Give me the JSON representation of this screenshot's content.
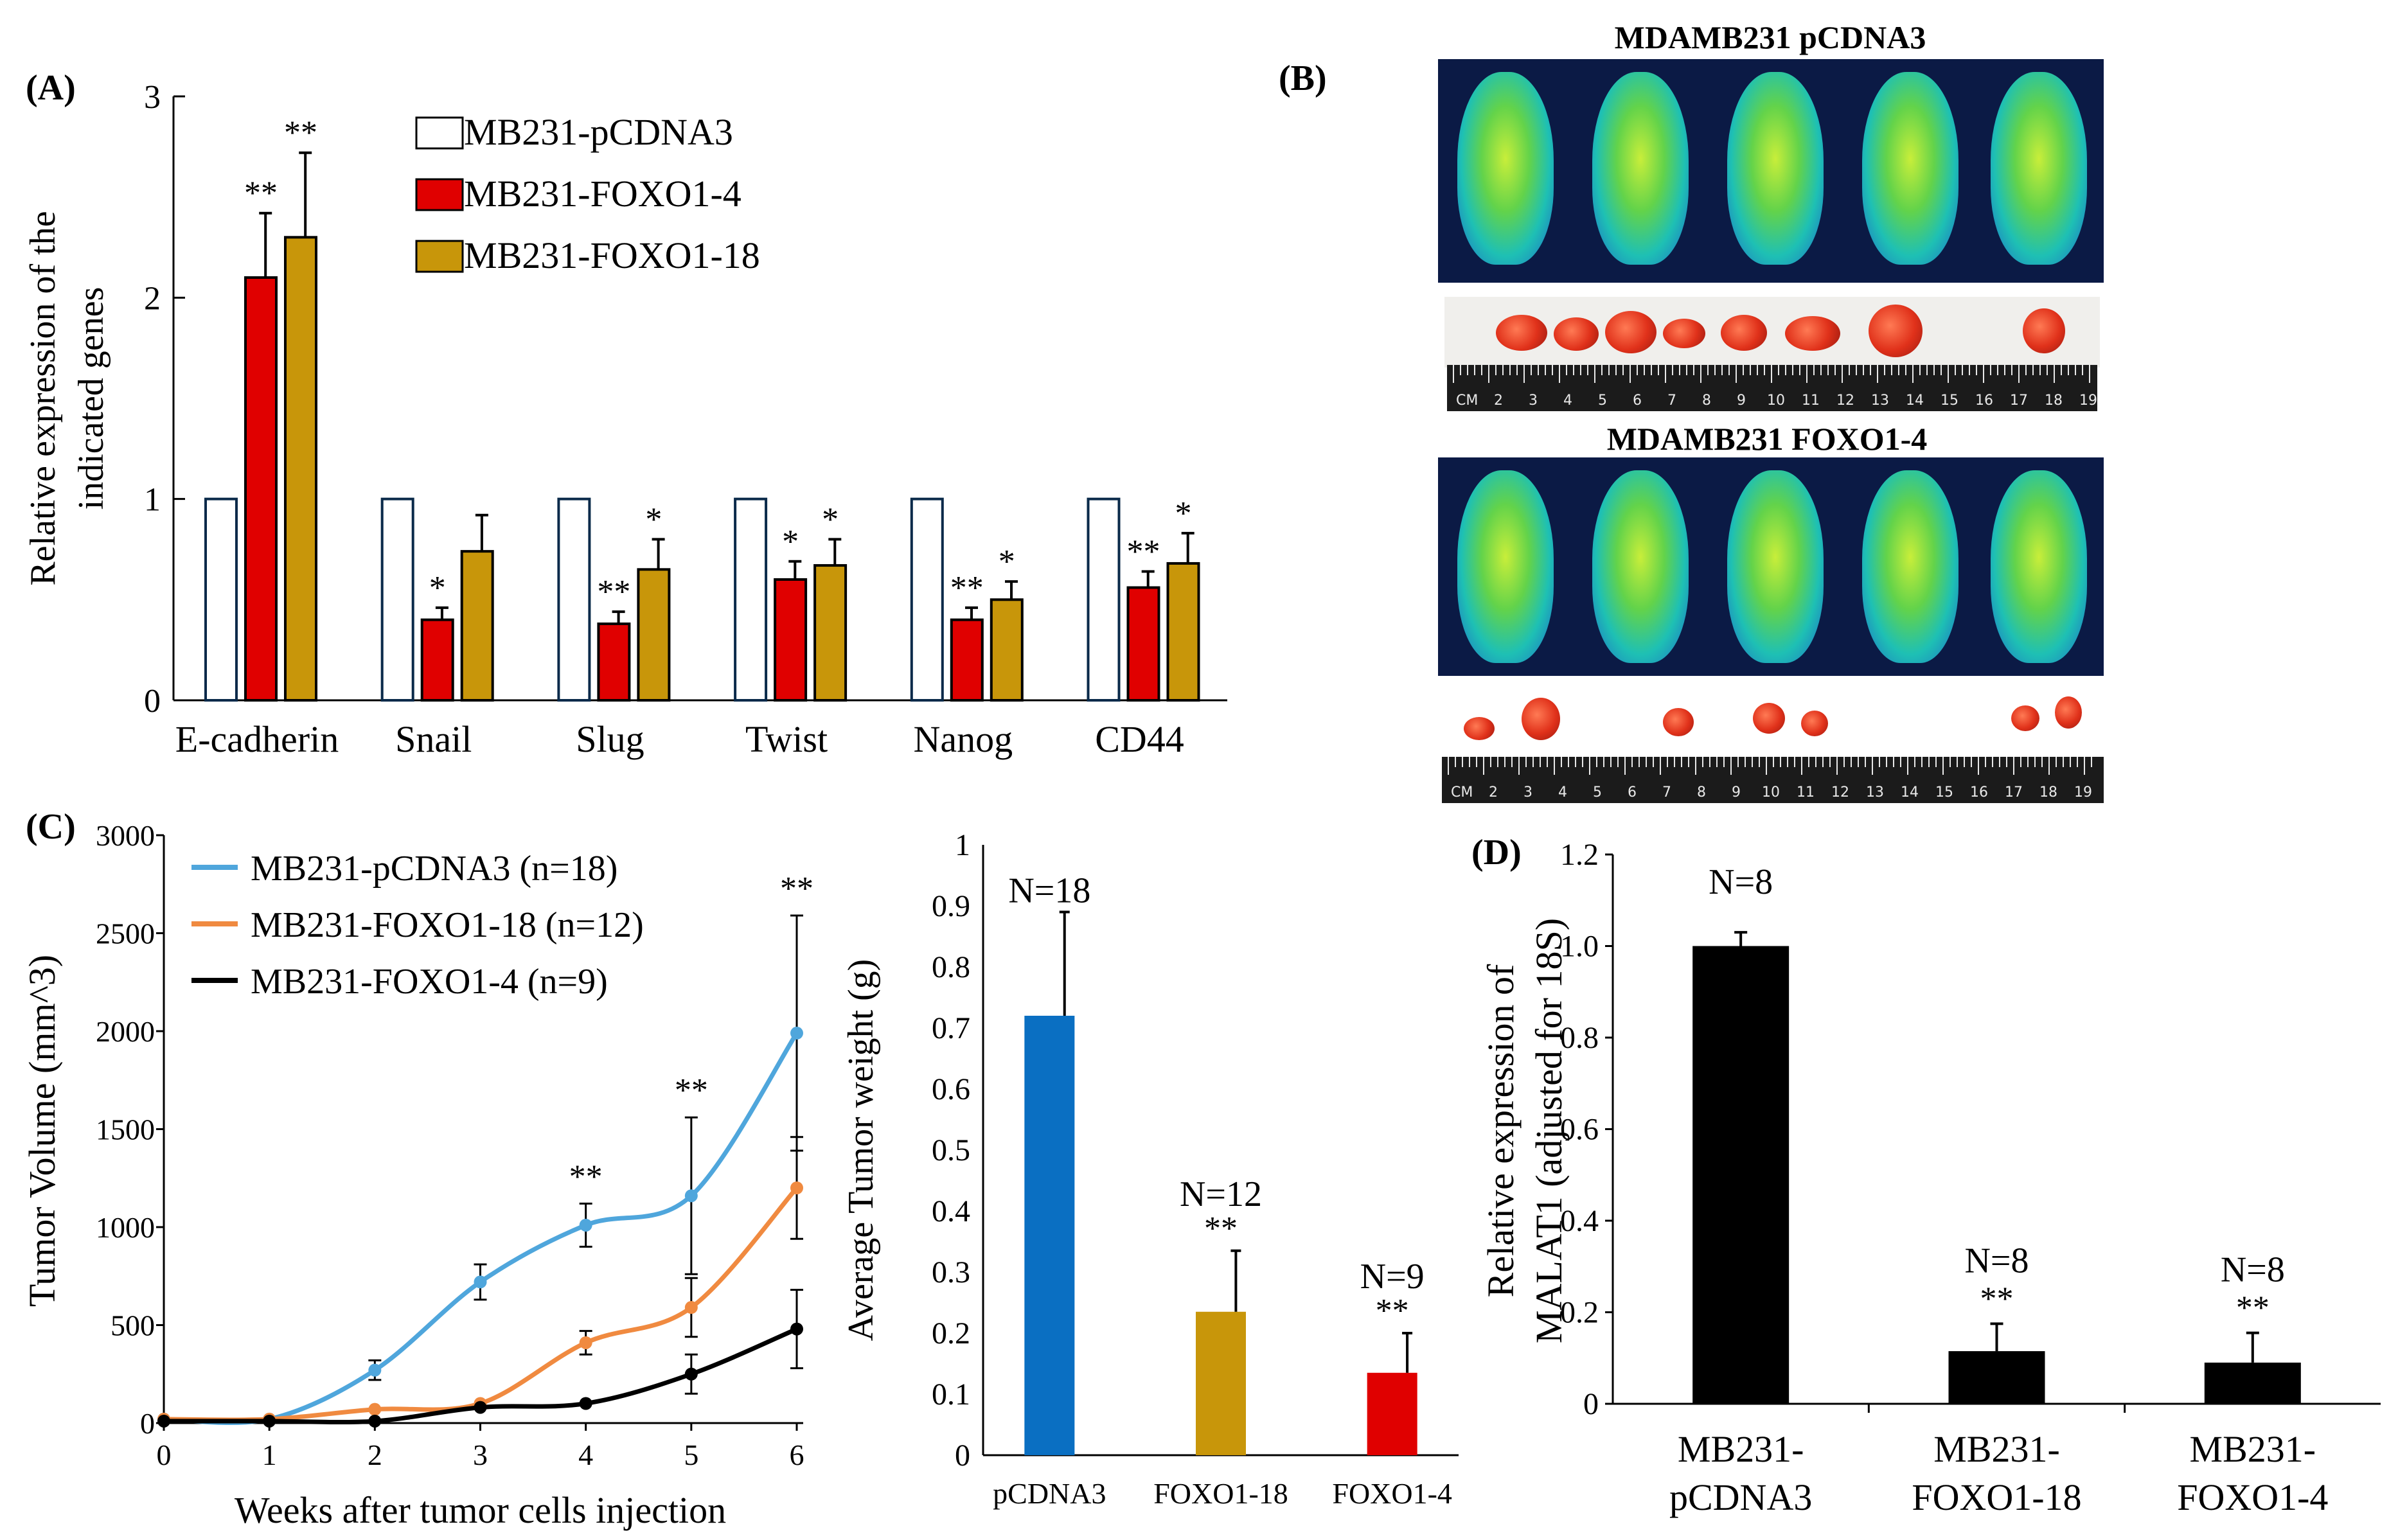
{
  "panels": {
    "A": {
      "label": "(A)",
      "chart_data": {
        "type": "bar",
        "title": "",
        "xlabel": "",
        "ylabel": "Relative expression of the indicated genes",
        "ylabel_lines": [
          "Relative expression of the",
          "indicated genes"
        ],
        "ylim": [
          0,
          3
        ],
        "yticks": [
          0,
          1,
          2,
          3
        ],
        "categories": [
          "E-cadherin",
          "Snail",
          "Slug",
          "Twist",
          "Nanog",
          "CD44"
        ],
        "series": [
          {
            "name": "MB231-pCDNA3",
            "color": "#ffffff",
            "values": [
              1,
              1,
              1,
              1,
              1,
              1
            ],
            "errors": [
              0,
              0,
              0,
              0,
              0,
              0
            ],
            "sig": [
              "",
              "",
              "",
              "",
              "",
              ""
            ]
          },
          {
            "name": "MB231-FOXO1-4",
            "color": "#e00000",
            "values": [
              2.1,
              0.4,
              0.38,
              0.6,
              0.4,
              0.56
            ],
            "errors": [
              0.32,
              0.06,
              0.06,
              0.09,
              0.06,
              0.08
            ],
            "sig": [
              "**",
              "*",
              "**",
              "*",
              "**",
              "**"
            ]
          },
          {
            "name": "MB231-FOXO1-18",
            "color": "#c8960a",
            "values": [
              2.3,
              0.74,
              0.65,
              0.67,
              0.5,
              0.68
            ],
            "errors": [
              0.42,
              0.18,
              0.15,
              0.13,
              0.09,
              0.15
            ],
            "sig": [
              "**",
              "",
              "*",
              "*",
              "*",
              "*"
            ]
          }
        ],
        "legend": "top-right"
      }
    },
    "B": {
      "label": "(B)",
      "top_title": "MDAMB231 pCDNA3",
      "bottom_title": "MDAMB231 FOXO1-4",
      "ruler_unit": "CM",
      "ruler_numbers": [
        "2",
        "3",
        "4",
        "5",
        "6",
        "7",
        "8",
        "9",
        "10",
        "11",
        "12",
        "13",
        "14",
        "15",
        "16",
        "17",
        "18",
        "19"
      ]
    },
    "C_line": {
      "label": "(C)",
      "chart_data": {
        "type": "line",
        "title": "",
        "xlabel": "Weeks after tumor cells injection",
        "ylabel": "Tumor Volume (mm^3)",
        "x": [
          0,
          1,
          2,
          3,
          4,
          5,
          6
        ],
        "xlim": [
          0,
          6
        ],
        "ylim": [
          0,
          3000
        ],
        "yticks": [
          0,
          500,
          1000,
          1500,
          2000,
          2500,
          3000
        ],
        "series": [
          {
            "name": "MB231-pCDNA3 (n=18)",
            "color": "#4fa6dc",
            "values": [
              20,
              20,
              270,
              720,
              1010,
              1160,
              1990
            ],
            "errors": [
              0,
              0,
              50,
              90,
              110,
              400,
              600
            ]
          },
          {
            "name": "MB231-FOXO1-18  (n=12)",
            "color": "#f08a40",
            "values": [
              20,
              20,
              70,
              100,
              410,
              590,
              1200
            ],
            "errors": [
              0,
              0,
              0,
              0,
              60,
              150,
              260
            ]
          },
          {
            "name": "MB231-FOXO1-4 (n=9)",
            "color": "#000000",
            "values": [
              10,
              10,
              10,
              80,
              100,
              250,
              480
            ],
            "errors": [
              0,
              0,
              0,
              0,
              0,
              100,
              200
            ]
          }
        ],
        "sig": [
          {
            "x": 4,
            "label": "**"
          },
          {
            "x": 5,
            "label": "**"
          },
          {
            "x": 6,
            "label": "**"
          }
        ],
        "legend": "top-left"
      }
    },
    "C_bar": {
      "chart_data": {
        "type": "bar",
        "title": "",
        "xlabel": "",
        "ylabel": "Average  Tumor weight (g)",
        "ylim": [
          0,
          1
        ],
        "yticks": [
          "0",
          "0.1",
          "0.2",
          "0.3",
          "0.4",
          "0.5",
          "0.6",
          "0.7",
          "0.8",
          "0.9",
          "1"
        ],
        "categories": [
          "pCDNA3",
          "FOXO1-18",
          "FOXO1-4"
        ],
        "values": [
          0.72,
          0.235,
          0.135
        ],
        "errors": [
          0.17,
          0.1,
          0.065
        ],
        "colors": [
          "#0a6fc2",
          "#c8960a",
          "#e00000"
        ],
        "n_labels": [
          "N=18",
          "N=12",
          "N=9"
        ],
        "sig": [
          "",
          "**",
          "**"
        ]
      }
    },
    "D": {
      "label": "(D)",
      "chart_data": {
        "type": "bar",
        "title": "",
        "xlabel": "",
        "ylabel": "Relative expression of MALAT1 (adjusted for 18S)",
        "ylabel_lines": [
          "Relative expression of",
          "MALAT1 (adjusted for 18S)"
        ],
        "ylim": [
          0,
          1.2
        ],
        "yticks": [
          "0",
          "0.2",
          "0.4",
          "0.6",
          "0.8",
          "1.0",
          "1.2"
        ],
        "categories": [
          [
            "MB231-",
            "pCDNA3"
          ],
          [
            "MB231-",
            "FOXO1-18"
          ],
          [
            "MB231-",
            "FOXO1-4"
          ]
        ],
        "values": [
          1.0,
          0.115,
          0.09
        ],
        "errors": [
          0.03,
          0.06,
          0.065
        ],
        "color": "#000000",
        "n_labels": [
          "N=8",
          "N=8",
          "N=8"
        ],
        "sig": [
          "",
          "**",
          "**"
        ]
      }
    }
  }
}
